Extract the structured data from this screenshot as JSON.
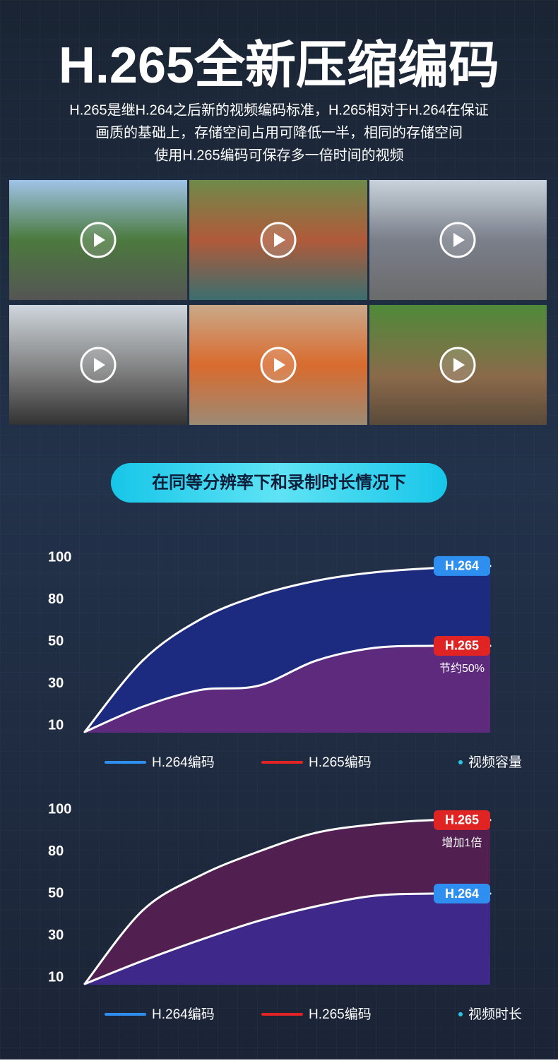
{
  "header": {
    "title": "H.265全新压缩编码",
    "subtitle_lines": [
      "H.265是继H.264之后新的视频编码标准，H.265相对于H.264在保证",
      "画质的基础上，存储空间占用可降低一半，相同的存储空间",
      "使用H.265编码可保存多一倍时间的视频"
    ]
  },
  "banner": "在同等分辨率下和录制时长情况下",
  "chart_data": [
    {
      "type": "area",
      "ylabel": "视频容量",
      "categories": [
        null,
        null,
        null,
        null,
        null,
        null,
        null,
        null
      ],
      "ylim": [
        10,
        100
      ],
      "yticks": [
        10,
        30,
        50,
        80,
        100
      ],
      "series": [
        {
          "name": "H.264编码",
          "end_label": "H.264",
          "color": "#2f8ff0",
          "fill": "#1c2a8a",
          "values": [
            7,
            41,
            66,
            82,
            89,
            93,
            95,
            96
          ]
        },
        {
          "name": "H.265编码",
          "end_label": "H.265",
          "note": "节约50%",
          "color": "#e02424",
          "fill": "#6a2a7e",
          "values": [
            7,
            19,
            27,
            29,
            41,
            47,
            48,
            48
          ]
        }
      ]
    },
    {
      "type": "area",
      "ylabel": "视频时长",
      "categories": [
        null,
        null,
        null,
        null,
        null,
        null,
        null,
        null
      ],
      "ylim": [
        10,
        100
      ],
      "yticks": [
        10,
        30,
        50,
        80,
        100
      ],
      "series": [
        {
          "name": "H.264编码",
          "end_label": "H.264",
          "color": "#2f8ff0",
          "fill": "#3b2a94",
          "values": [
            7,
            18,
            28,
            37,
            44,
            49,
            50,
            50
          ]
        },
        {
          "name": "H.265编码",
          "end_label": "H.265",
          "note": "增加1倍",
          "color": "#e02424",
          "fill": "#5a1f55",
          "values": [
            7,
            42,
            63,
            80,
            89,
            93,
            95,
            95
          ]
        }
      ]
    }
  ]
}
